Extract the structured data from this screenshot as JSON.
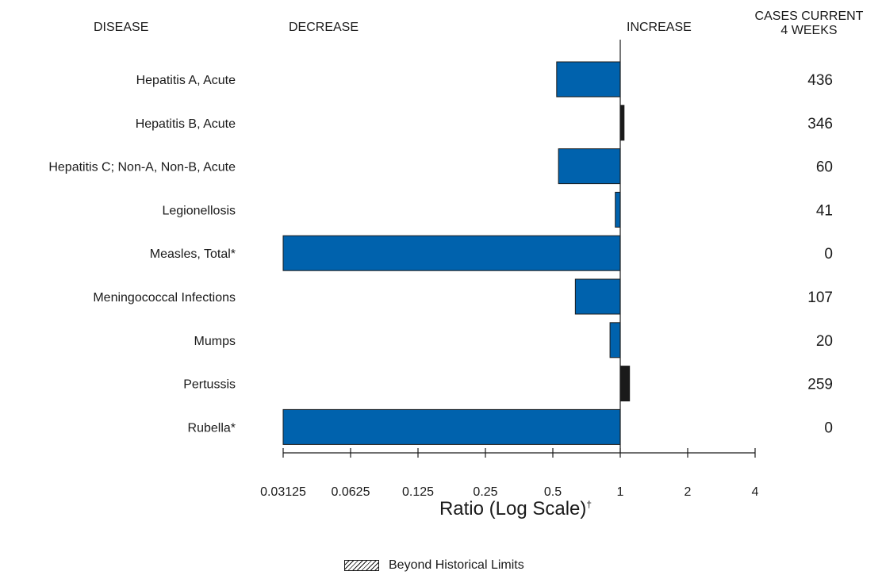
{
  "headers": {
    "disease": "DISEASE",
    "decrease": "DECREASE",
    "increase": "INCREASE",
    "cases_line1": "CASES CURRENT",
    "cases_line2": "4 WEEKS"
  },
  "colors": {
    "decrease_bar": "#0062ad",
    "increase_bar": "#1a1a1a",
    "axis": "#1a1a1a"
  },
  "legend": {
    "label": "Beyond Historical Limits",
    "swatch": "hatched"
  },
  "chart_data": {
    "type": "bar",
    "orientation": "horizontal",
    "xlabel": "Ratio (Log Scale)",
    "xlabel_mark": "†",
    "x_scale": "log2",
    "xlim": [
      0.03125,
      4
    ],
    "xticks": [
      "0.03125",
      "0.0625",
      "0.125",
      "0.25",
      "0.5",
      "1",
      "2",
      "4"
    ],
    "baseline": 1,
    "categories": [
      "Hepatitis A, Acute",
      "Hepatitis B, Acute",
      "Hepatitis C; Non-A, Non-B, Acute",
      "Legionellosis",
      "Measles, Total*",
      "Meningococcal Infections",
      "Mumps",
      "Pertussis",
      "Rubella*"
    ],
    "ratios": [
      0.52,
      1.04,
      0.53,
      0.95,
      0.03125,
      0.63,
      0.9,
      1.1,
      0.03125
    ],
    "cases_current_4_weeks": [
      "436",
      "346",
      "60",
      "41",
      "0",
      "107",
      "20",
      "259",
      "0"
    ],
    "grid": false
  }
}
